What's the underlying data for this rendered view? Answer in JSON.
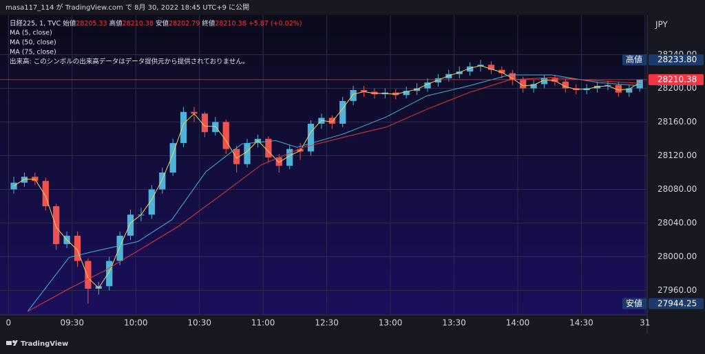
{
  "header": {
    "publish": "masa117_114 が TradingView.com で 8月 30, 2022 18:45 UTC+9 に公開"
  },
  "footer": {
    "brand": "TradingView"
  },
  "chart_data": {
    "type": "candlestick",
    "symbol": "日経225, 1, TVC",
    "ohlc_legend": [
      {
        "label": "始値",
        "value": 28205.33
      },
      {
        "label": "高値",
        "value": 28210.38
      },
      {
        "label": "安値",
        "value": 28202.79
      },
      {
        "label": "終値",
        "value": 28210.38
      }
    ],
    "change_label": "+5.87 (+0.02%)",
    "volume_note": "出来高: このシンボルの出来高データはデータ提供元から提供されておりません。",
    "currency": "JPY",
    "up_color": "#4fb3d9",
    "down_color": "#ef5350",
    "x": [
      2.5,
      7.5,
      12.5,
      17.5,
      22.5,
      27.5,
      32.5,
      37.5,
      42.5,
      47.5,
      52.5,
      57.5,
      62.5,
      67.5,
      72.5,
      77.5,
      82.5,
      87.5,
      92.5,
      97.5,
      102.5,
      107.5,
      112.5,
      117.5,
      122.5,
      127.5,
      132.5,
      137.5,
      142.5,
      147.5,
      152.5,
      157.5,
      162.5,
      167.5,
      172.5,
      177.5,
      182.5,
      187.5,
      192.5,
      197.5,
      202.5,
      207.5,
      212.5,
      217.5,
      222.5,
      227.5,
      232.5,
      237.5,
      242.5,
      247.5,
      252.5,
      257.5,
      262.5,
      267.5,
      272.5,
      277.5,
      282.5,
      287.5,
      292.5,
      297.5
    ],
    "open": [
      28080,
      28088,
      28095,
      28090,
      28060,
      28015,
      28025,
      27995,
      27962,
      27965,
      27995,
      28025,
      28050,
      28050,
      28080,
      28100,
      28135,
      28172,
      28170,
      28148,
      28160,
      28128,
      28110,
      28135,
      28140,
      28118,
      28108,
      28128,
      28125,
      28158,
      28165,
      28158,
      28185,
      28198,
      28196,
      28193,
      28195,
      28192,
      28197,
      28200,
      28207,
      28212,
      28217,
      28220,
      28226,
      28228,
      28222,
      28218,
      28210,
      28200,
      28205,
      28212,
      28208,
      28200,
      28198,
      28200,
      28203,
      28204,
      28195,
      28200
    ],
    "high": [
      28095,
      28100,
      28100,
      28094,
      28063,
      28030,
      28030,
      27998,
      27970,
      28000,
      28030,
      28056,
      28058,
      28085,
      28106,
      28140,
      28178,
      28178,
      28172,
      28166,
      28163,
      28132,
      28140,
      28145,
      28143,
      28122,
      28133,
      28135,
      28162,
      28170,
      28168,
      28190,
      28203,
      28203,
      28200,
      28200,
      28199,
      28202,
      28206,
      28212,
      28217,
      28222,
      28226,
      28231,
      28233.8,
      28232,
      28226,
      28222,
      28214,
      28210,
      28216,
      28216,
      28211,
      28205,
      28205,
      28208,
      28209,
      28208,
      28204,
      28210.38
    ],
    "low": [
      28075,
      28083,
      28085,
      28055,
      28008,
      28010,
      27988,
      27944.25,
      27955,
      27960,
      27990,
      28020,
      28042,
      28045,
      28075,
      28096,
      28130,
      28160,
      28142,
      28144,
      28122,
      28100,
      28106,
      28130,
      28112,
      28100,
      28104,
      28115,
      28120,
      28152,
      28152,
      28154,
      28180,
      28190,
      28188,
      28188,
      28187,
      28188,
      28192,
      28196,
      28202,
      28208,
      28212,
      28215,
      28220,
      28217,
      28212,
      28204,
      28195,
      28195,
      28200,
      28203,
      28195,
      28193,
      28193,
      28195,
      28198,
      28190,
      28190,
      28196
    ],
    "close": [
      28088,
      28095,
      28090,
      28060,
      28015,
      28025,
      27995,
      27962,
      27965,
      27995,
      28025,
      28050,
      28050,
      28080,
      28100,
      28135,
      28172,
      28170,
      28148,
      28160,
      28128,
      28110,
      28135,
      28140,
      28118,
      28108,
      28128,
      28125,
      28158,
      28165,
      28158,
      28185,
      28198,
      28196,
      28193,
      28195,
      28192,
      28197,
      28200,
      28207,
      28212,
      28217,
      28220,
      28226,
      28228,
      28222,
      28218,
      28210,
      28200,
      28205,
      28212,
      28208,
      28200,
      28198,
      28200,
      28203,
      28204,
      28195,
      28200,
      28210.38
    ],
    "series": [
      {
        "name": "MA (5, close)",
        "color": "#f7d154",
        "x": [
          2.5,
          7.5,
          12.5,
          17.5,
          22.5,
          27.5,
          32.5,
          37.5,
          42.5,
          47.5,
          52.5,
          57.5,
          62.5,
          67.5,
          72.5,
          77.5,
          82.5,
          87.5,
          92.5,
          97.5,
          102.5,
          107.5,
          112.5,
          117.5,
          122.5,
          127.5,
          132.5,
          137.5,
          142.5,
          147.5,
          152.5,
          157.5,
          162.5,
          167.5,
          172.5,
          177.5,
          182.5,
          187.5,
          192.5,
          197.5,
          202.5,
          207.5,
          212.5,
          217.5,
          222.5,
          227.5,
          232.5,
          237.5,
          242.5,
          247.5,
          252.5,
          257.5,
          262.5,
          267.5,
          272.5,
          277.5,
          282.5,
          287.5,
          292.5,
          297.5
        ],
        "values": [
          28084,
          28092,
          28092,
          28072,
          28035,
          28020,
          28008,
          27975,
          27963,
          27982,
          28012,
          28040,
          28050,
          28068,
          28092,
          28122,
          28158,
          28170,
          28155,
          28155,
          28138,
          28117,
          28125,
          28138,
          28125,
          28112,
          28120,
          28126,
          28148,
          28162,
          28160,
          28176,
          28193,
          28196,
          28194,
          28194,
          28193,
          28196,
          28199,
          28205,
          28210,
          28215,
          28219,
          28224,
          28227,
          28223,
          28219,
          28212,
          28203,
          28204,
          28210,
          28209,
          28202,
          28199,
          28199,
          28202,
          28203,
          28198,
          28199,
          28207
        ]
      },
      {
        "name": "MA (50, close)",
        "color": "#3fb6d8",
        "x": [
          9,
          28.5,
          38,
          61,
          77,
          93,
          110,
          126,
          136,
          158,
          178,
          197,
          217,
          236,
          256,
          278,
          298
        ],
        "values": [
          27935,
          27999,
          28005,
          28018,
          28044,
          28101,
          28134,
          28138,
          28130,
          28146,
          28166,
          28191,
          28203,
          28216,
          28216,
          28207,
          28203
        ]
      },
      {
        "name": "MA (75, close)",
        "color": "#e53935",
        "x": [
          9,
          28.5,
          45,
          61,
          80,
          100,
          119,
          139,
          158,
          178,
          197,
          217,
          236,
          256,
          278,
          298
        ],
        "values": [
          27935,
          27962,
          27983,
          28007,
          28036,
          28073,
          28109,
          28130,
          28142,
          28154,
          28175,
          28195,
          28210,
          28213,
          28209,
          28206
        ]
      }
    ],
    "xlim": [
      -4,
      301
    ],
    "xticks": [
      0,
      {
        "value": 30,
        "label": "09:30"
      },
      {
        "value": 60,
        "label": "10:00"
      },
      {
        "value": 90,
        "label": "10:30"
      },
      {
        "value": 120,
        "label": "11:00"
      },
      {
        "value": 150,
        "label": "12:30"
      },
      {
        "value": 180,
        "label": "13:00"
      },
      {
        "value": 210,
        "label": "13:30"
      },
      {
        "value": 240,
        "label": "14:00"
      },
      {
        "value": 270,
        "label": "14:30"
      },
      {
        "value": 300,
        "label": "31"
      }
    ],
    "ylim": [
      27931,
      28287
    ],
    "yticks": [
      {
        "value": 27960,
        "label": "27960.00"
      },
      {
        "value": 28000,
        "label": "28000.00"
      },
      {
        "value": 28040,
        "label": "28040.00"
      },
      {
        "value": 28080,
        "label": "28080.00"
      },
      {
        "value": 28120,
        "label": "28120.00"
      },
      {
        "value": 28160,
        "label": "28160.00"
      },
      {
        "value": 28200,
        "label": "28200.00"
      },
      {
        "value": 28240,
        "label": "28240.00"
      }
    ],
    "grid": true,
    "price_labels": [
      {
        "name": "高値",
        "value": 28233.8,
        "label": "28233.80",
        "color": "#1c3a6b"
      },
      {
        "value": 28210.38,
        "label": "28210.38",
        "color": "#f23645"
      },
      {
        "name": "安値",
        "value": 27944.25,
        "label": "27944.25",
        "color": "#1c3a6b"
      }
    ]
  }
}
